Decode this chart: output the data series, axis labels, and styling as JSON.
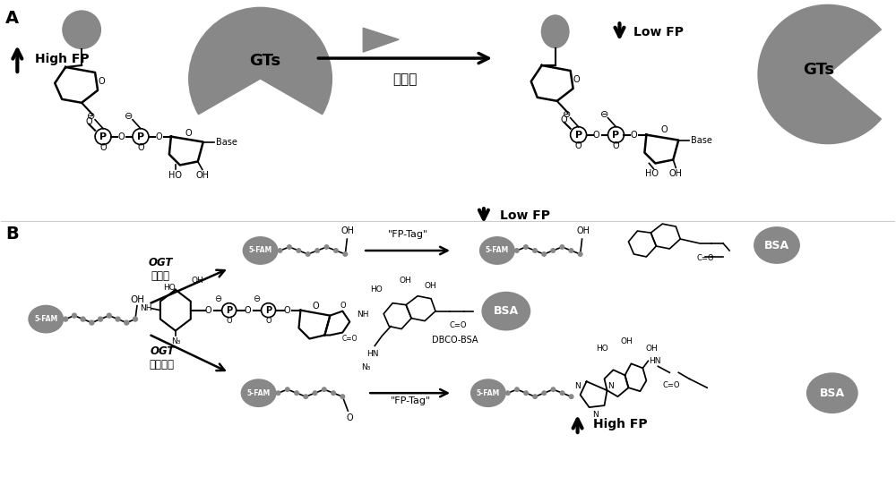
{
  "background_color": "#ffffff",
  "gray_color": "#888888",
  "dark_gray": "#555555",
  "text_color": "#000000",
  "panel_A_label": "A",
  "panel_B_label": "B",
  "GTs_label": "GTs",
  "high_fp_label": "High FP",
  "low_fp_label": "Low FP",
  "inhibitor_label": "抑制剂",
  "ogt_label": "OGT",
  "inhibitor_cn": "抑制剂",
  "no_inhibitor_cn": "无抑制剂",
  "fp_tag_label": "\"FP-Tag\"",
  "dbco_bsa_label": "DBCO-BSA",
  "bsa_label": "BSA",
  "fam_label": "5-FAM",
  "base_label": "Base"
}
